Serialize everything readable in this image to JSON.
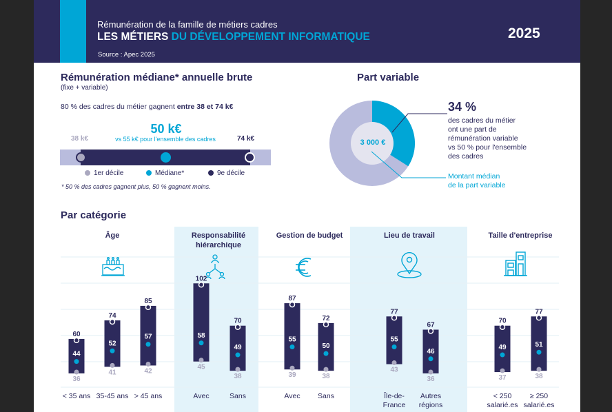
{
  "header": {
    "subtitle": "Rémunération de la famille de métiers cadres",
    "title_part1": "LES MÉTIERS",
    "title_part2": "DU DÉVELOPPEMENT INFORMATIQUE",
    "source": "Source : Apec 2025",
    "year": "2025"
  },
  "salary": {
    "title": "Rémunération médiane* annuelle brute",
    "subtitle": "(fixe + variable)",
    "range_text": "80 % des cadres du métier gagnent ",
    "range_bold": "entre 38 et 74 k€",
    "median": "50 k€",
    "median_compare": "vs 55 k€ pour l'ensemble des cadres",
    "d1": "38 k€",
    "d9": "74 k€",
    "d1_value": 38,
    "median_value": 50,
    "d9_value": 74,
    "legend": {
      "d1": "1er décile",
      "median": "Médiane*",
      "d9": "9e décile"
    },
    "footnote": "* 50 % des cadres gagnent plus, 50 % gagnent moins."
  },
  "variable": {
    "title": "Part variable",
    "percent": "34 %",
    "percent_value": 34,
    "desc": [
      "des cadres du métier",
      "ont une part de",
      "rémunération variable",
      "vs 50 % pour l'ensemble",
      "des cadres"
    ],
    "amount": "3 000 €",
    "amount_label": [
      "Montant médian",
      "de la part variable"
    ]
  },
  "category_title": "Par catégorie",
  "colors": {
    "navy": "#2d2a5c",
    "cyan": "#00a6d6",
    "grey": "#aaa8bf",
    "light": "#b9bcdd"
  },
  "chart_data": {
    "type": "range-bar",
    "unit": "k€",
    "groups": [
      {
        "title": [
          "Âge"
        ],
        "icon": "birthday-cake-icon",
        "items": [
          {
            "label": [
              "< 35 ans"
            ],
            "d1": 36,
            "median": 44,
            "d9": 60
          },
          {
            "label": [
              "35-45 ans"
            ],
            "d1": 41,
            "median": 52,
            "d9": 74
          },
          {
            "label": [
              "> 45 ans"
            ],
            "d1": 42,
            "median": 57,
            "d9": 85
          }
        ]
      },
      {
        "title": [
          "Responsabilité",
          "hiérarchique"
        ],
        "icon": "hierarchy-icon",
        "items": [
          {
            "label": [
              "Avec"
            ],
            "d1": 45,
            "median": 58,
            "d9": 102
          },
          {
            "label": [
              "Sans"
            ],
            "d1": 38,
            "median": 49,
            "d9": 70
          }
        ]
      },
      {
        "title": [
          "Gestion de budget"
        ],
        "icon": "euro-icon",
        "items": [
          {
            "label": [
              "Avec"
            ],
            "d1": 39,
            "median": 55,
            "d9": 87
          },
          {
            "label": [
              "Sans"
            ],
            "d1": 38,
            "median": 50,
            "d9": 72
          }
        ]
      },
      {
        "title": [
          "Lieu de travail"
        ],
        "icon": "location-pin-icon",
        "items": [
          {
            "label": [
              "Île-de-",
              "France"
            ],
            "d1": 43,
            "median": 55,
            "d9": 77
          },
          {
            "label": [
              "Autres",
              "régions"
            ],
            "d1": 36,
            "median": 46,
            "d9": 67
          }
        ]
      },
      {
        "title": [
          "Taille d'entreprise"
        ],
        "icon": "buildings-icon",
        "items": [
          {
            "label": [
              "< 250",
              "salarié.es"
            ],
            "d1": 37,
            "median": 49,
            "d9": 70
          },
          {
            "label": [
              "≥ 250",
              "salarié.es"
            ],
            "d1": 38,
            "median": 51,
            "d9": 77
          }
        ]
      }
    ]
  }
}
